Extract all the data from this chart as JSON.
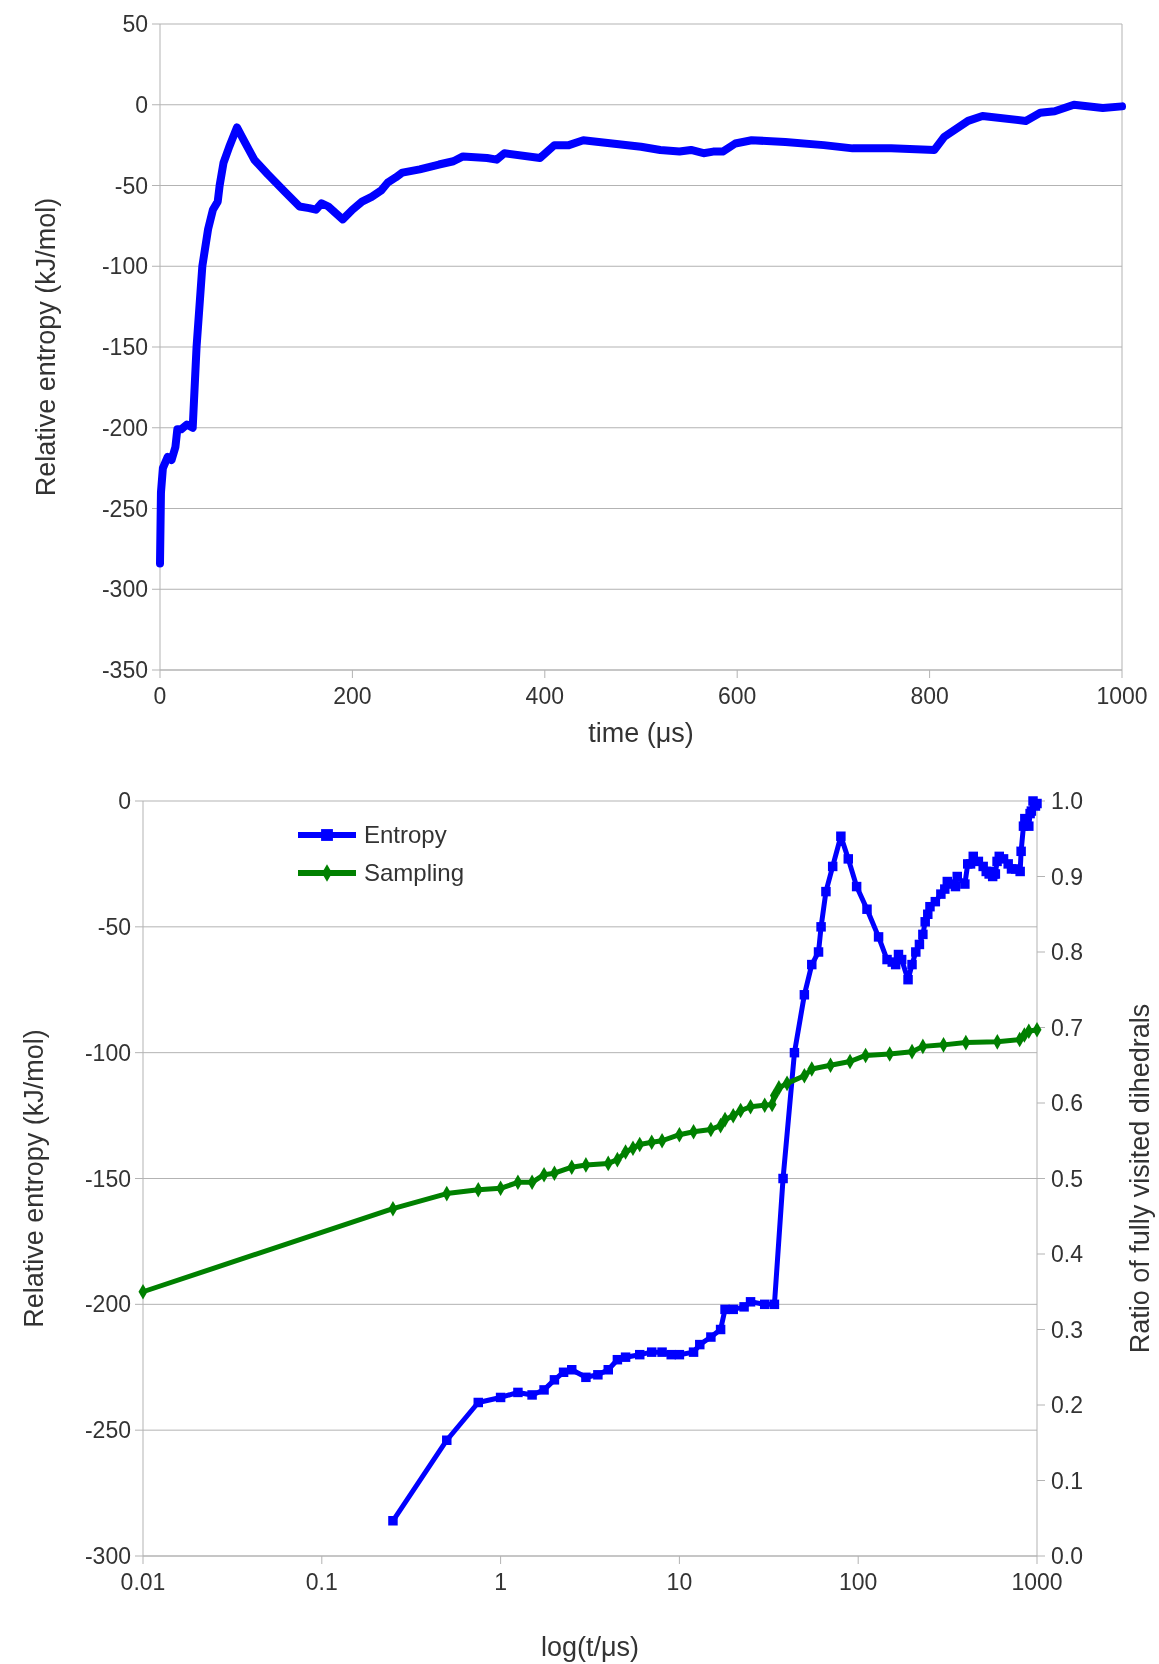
{
  "chart_data": [
    {
      "type": "line",
      "xlabel": "time (μs)",
      "ylabel": "Relative entropy (kJ/mol)",
      "xlim": [
        0,
        1000
      ],
      "ylim": [
        -350,
        50
      ],
      "xticks": [
        0,
        200,
        400,
        600,
        800,
        1000
      ],
      "yticks": [
        -350,
        -300,
        -250,
        -200,
        -150,
        -100,
        -50,
        0,
        50
      ],
      "grid": "y",
      "legend": false,
      "series": [
        {
          "color": "#0000ff",
          "x": [
            0,
            1,
            3,
            8,
            12,
            16,
            18,
            22,
            28,
            34,
            38,
            44,
            50,
            55,
            60,
            62,
            66,
            72,
            80,
            88,
            98,
            112,
            130,
            145,
            155,
            162,
            168,
            175,
            190,
            200,
            210,
            220,
            230,
            237,
            245,
            252,
            270,
            290,
            305,
            315,
            340,
            350,
            358,
            395,
            410,
            425,
            440,
            470,
            500,
            520,
            540,
            552,
            565,
            575,
            585,
            598,
            615,
            650,
            690,
            720,
            760,
            805,
            815,
            840,
            855,
            900,
            915,
            930,
            950,
            980,
            1000
          ],
          "values": [
            -284,
            -240,
            -225,
            -218,
            -220,
            -212,
            -201,
            -201,
            -198,
            -200,
            -150,
            -100,
            -77,
            -65,
            -60,
            -50,
            -36,
            -26,
            -14,
            -23,
            -34,
            -43,
            -54,
            -63,
            -64,
            -65,
            -61,
            -63,
            -71,
            -65,
            -60,
            -57,
            -53,
            -48,
            -45,
            -42,
            -40,
            -37,
            -35,
            -32,
            -33,
            -34,
            -30,
            -33,
            -25,
            -25,
            -22,
            -24,
            -26,
            -28,
            -29,
            -28,
            -30,
            -29,
            -29,
            -24,
            -22,
            -23,
            -25,
            -27,
            -27,
            -28,
            -20,
            -10,
            -7,
            -10,
            -5,
            -4,
            0,
            -2,
            -1
          ]
        }
      ]
    },
    {
      "type": "line",
      "xlabel": "log(t/μs)",
      "ylabel": "Relative entropy (kJ/mol)",
      "y2label": "Ratio of fully visited dihedrals",
      "log": "x",
      "xlim": [
        0.01,
        1000
      ],
      "ylim": [
        -300,
        0
      ],
      "y2lim": [
        0,
        1
      ],
      "xticks": [
        0.01,
        0.1,
        1,
        10,
        100,
        1000
      ],
      "yticks": [
        -300,
        -250,
        -200,
        -150,
        -100,
        -50,
        0
      ],
      "y2ticks": [
        {
          "value": 0,
          "label": "0.0"
        },
        0.1,
        0.2,
        0.3,
        0.4,
        0.5,
        0.6,
        0.7,
        0.8,
        0.9,
        {
          "value": 1,
          "label": "1.0"
        }
      ],
      "grid": "y",
      "legend": "top left",
      "series": [
        {
          "name": "Entropy",
          "color": "#0000ff",
          "marker": "square",
          "x": [
            0.25,
            0.5,
            0.75,
            1,
            1.25,
            1.5,
            1.75,
            2,
            2.25,
            2.5,
            3,
            3.5,
            4,
            4.5,
            5,
            6,
            7,
            8,
            9,
            10,
            12,
            13,
            15,
            17,
            18,
            20,
            23,
            25,
            30,
            34,
            38,
            44,
            50,
            55,
            60,
            62,
            66,
            72,
            80,
            88,
            98,
            112,
            130,
            145,
            155,
            162,
            168,
            175,
            190,
            200,
            210,
            220,
            230,
            237,
            245,
            252,
            270,
            290,
            305,
            315,
            340,
            350,
            358,
            395,
            410,
            425,
            440,
            470,
            500,
            520,
            540,
            552,
            565,
            575,
            585,
            598,
            615,
            650,
            690,
            720,
            760,
            805,
            815,
            840,
            855,
            900,
            915,
            930,
            950,
            980,
            1000
          ],
          "values": [
            -286,
            -254,
            -239,
            -237,
            -235,
            -236,
            -234,
            -230,
            -227,
            -226,
            -229,
            -228,
            -226,
            -222,
            -221,
            -220,
            -219,
            -219,
            -220,
            -220,
            -219,
            -216,
            -213,
            -210,
            -202,
            -202,
            -201,
            -199,
            -200,
            -200,
            -150,
            -100,
            -77,
            -65,
            -60,
            -50,
            -36,
            -26,
            -14,
            -23,
            -34,
            -43,
            -54,
            -63,
            -64,
            -65,
            -61,
            -63,
            -71,
            -65,
            -60,
            -57,
            -53,
            -48,
            -45,
            -42,
            -40,
            -37,
            -35,
            -32,
            -33,
            -34,
            -30,
            -33,
            -25,
            -25,
            -22,
            -24,
            -26,
            -28,
            -29,
            -28,
            -30,
            -29,
            -29,
            -24,
            -22,
            -23,
            -25,
            -27,
            -27,
            -28,
            -20,
            -10,
            -7,
            -10,
            -5,
            -4,
            0,
            -2,
            -1
          ]
        },
        {
          "name": "Sampling",
          "color": "#008000",
          "marker": "diamond",
          "axis": "y2",
          "x": [
            0.01,
            0.25,
            0.5,
            0.75,
            1,
            1.25,
            1.5,
            1.75,
            2,
            2.5,
            3,
            4,
            4.5,
            5,
            5.5,
            6,
            7,
            8,
            10,
            12,
            15,
            17,
            18,
            20,
            22,
            25,
            30,
            33,
            34,
            36,
            40,
            50,
            55,
            70,
            90,
            110,
            150,
            200,
            230,
            300,
            400,
            600,
            800,
            850,
            900,
            1000
          ],
          "values": [
            0.35,
            0.46,
            0.48,
            0.485,
            0.487,
            0.495,
            0.495,
            0.505,
            0.507,
            0.515,
            0.518,
            0.52,
            0.525,
            0.535,
            0.54,
            0.545,
            0.548,
            0.55,
            0.558,
            0.562,
            0.565,
            0.57,
            0.578,
            0.583,
            0.59,
            0.595,
            0.597,
            0.598,
            0.61,
            0.62,
            0.626,
            0.636,
            0.645,
            0.65,
            0.655,
            0.663,
            0.665,
            0.668,
            0.675,
            0.677,
            0.68,
            0.681,
            0.684,
            0.69,
            0.695,
            0.697
          ]
        }
      ]
    }
  ]
}
